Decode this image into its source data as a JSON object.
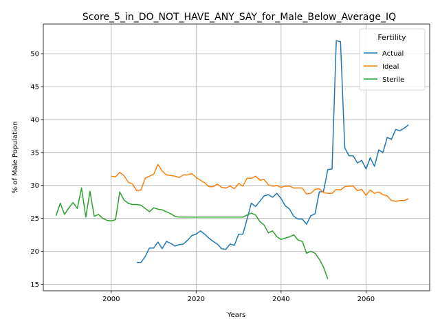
{
  "chart_data": {
    "type": "line",
    "title": "Score_5_in_DO_NOT_HAVE_ANY_SAY_for_Male_Below_Average_IQ",
    "xlabel": "Years",
    "ylabel": "% of Male Population",
    "xlim": [
      1984,
      2075
    ],
    "ylim": [
      14,
      54.5
    ],
    "xticks": [
      2000,
      2020,
      2040,
      2060
    ],
    "yticks": [
      15,
      20,
      25,
      30,
      35,
      40,
      45,
      50
    ],
    "grid": true,
    "legend": {
      "title": "Fertility",
      "placement": "top-right"
    },
    "series": [
      {
        "name": "Actual",
        "color": "#1f77b4",
        "x": [
          2006,
          2007,
          2008,
          2009,
          2010,
          2011,
          2012,
          2013,
          2014,
          2015,
          2016,
          2017,
          2018,
          2019,
          2020,
          2021,
          2022,
          2023,
          2024,
          2025,
          2026,
          2027,
          2028,
          2029,
          2030,
          2031,
          2032,
          2033,
          2034,
          2035,
          2036,
          2037,
          2038,
          2039,
          2040,
          2041,
          2042,
          2043,
          2044,
          2045,
          2046,
          2047,
          2048,
          2049,
          2050,
          2051,
          2052,
          2053,
          2054,
          2055,
          2056,
          2057,
          2058,
          2059,
          2060,
          2061,
          2062,
          2063,
          2064,
          2065,
          2066,
          2067,
          2068,
          2069,
          2070
        ],
        "y": [
          18.3,
          18.3,
          19.2,
          20.5,
          20.5,
          21.4,
          20.4,
          21.5,
          21.2,
          20.8,
          21.0,
          21.1,
          21.7,
          22.4,
          22.6,
          23.1,
          22.6,
          22.0,
          21.5,
          21.1,
          20.4,
          20.3,
          21.1,
          20.9,
          22.6,
          22.6,
          24.9,
          27.3,
          26.8,
          27.6,
          28.4,
          28.6,
          28.2,
          28.8,
          28.0,
          26.9,
          26.4,
          25.3,
          24.9,
          24.9,
          24.1,
          25.4,
          25.7,
          29.0,
          29.1,
          32.4,
          32.5,
          52.0,
          51.8,
          35.7,
          34.5,
          34.5,
          33.4,
          33.8,
          32.5,
          34.2,
          32.9,
          35.4,
          35.0,
          37.3,
          37.0,
          38.5,
          38.3,
          38.7,
          39.2
        ]
      },
      {
        "name": "Ideal",
        "color": "#ff7f0e",
        "x": [
          2000,
          2001,
          2002,
          2003,
          2004,
          2005,
          2006,
          2007,
          2008,
          2009,
          2010,
          2011,
          2012,
          2013,
          2014,
          2015,
          2016,
          2017,
          2018,
          2019,
          2020,
          2021,
          2022,
          2023,
          2024,
          2025,
          2026,
          2027,
          2028,
          2029,
          2030,
          2031,
          2032,
          2033,
          2034,
          2035,
          2036,
          2037,
          2038,
          2039,
          2040,
          2041,
          2042,
          2043,
          2044,
          2045,
          2046,
          2047,
          2048,
          2049,
          2050,
          2051,
          2052,
          2053,
          2054,
          2055,
          2056,
          2057,
          2058,
          2059,
          2060,
          2061,
          2062,
          2063,
          2064,
          2065,
          2066,
          2067,
          2068,
          2069,
          2070
        ],
        "y": [
          31.4,
          31.3,
          32.0,
          31.5,
          30.5,
          30.2,
          29.2,
          29.3,
          31.1,
          31.4,
          31.7,
          33.2,
          32.2,
          31.6,
          31.5,
          31.4,
          31.2,
          31.6,
          31.6,
          31.8,
          31.2,
          30.8,
          30.4,
          29.8,
          29.8,
          30.2,
          29.7,
          29.6,
          29.9,
          29.5,
          30.3,
          29.9,
          31.1,
          31.1,
          31.4,
          30.8,
          30.9,
          30.1,
          29.9,
          30.0,
          29.7,
          29.9,
          29.9,
          29.6,
          29.6,
          29.6,
          28.7,
          28.8,
          29.4,
          29.5,
          28.9,
          28.8,
          28.8,
          29.4,
          29.3,
          29.8,
          29.9,
          29.9,
          29.2,
          29.4,
          28.5,
          29.3,
          28.8,
          29.0,
          28.6,
          28.4,
          27.7,
          27.6,
          27.7,
          27.7,
          28.0
        ]
      },
      {
        "name": "Sterile",
        "color": "#2ca02c",
        "x": [
          1987,
          1988,
          1989,
          1990,
          1991,
          1992,
          1993,
          1994,
          1995,
          1996,
          1997,
          1998,
          1999,
          2000,
          2001,
          2002,
          2003,
          2004,
          2005,
          2006,
          2007,
          2008,
          2009,
          2010,
          2011,
          2012,
          2013,
          2014,
          2015,
          2016,
          2017,
          2018,
          2019,
          2020,
          2021,
          2022,
          2023,
          2024,
          2025,
          2026,
          2027,
          2028,
          2029,
          2030,
          2031,
          2032,
          2033,
          2034,
          2035,
          2036,
          2037,
          2038,
          2039,
          2040,
          2041,
          2042,
          2043,
          2044,
          2045,
          2046,
          2047,
          2048,
          2049,
          2050,
          2051
        ],
        "y": [
          25.4,
          27.3,
          25.6,
          26.6,
          27.4,
          26.5,
          29.6,
          25.2,
          29.1,
          25.3,
          25.6,
          25.0,
          24.7,
          24.6,
          24.8,
          29.0,
          27.8,
          27.3,
          27.1,
          27.1,
          27.0,
          26.5,
          26.0,
          26.6,
          26.4,
          26.3,
          26.0,
          25.7,
          25.3,
          25.2,
          25.2,
          25.2,
          25.2,
          25.2,
          25.2,
          25.2,
          25.2,
          25.2,
          25.2,
          25.2,
          25.2,
          25.2,
          25.2,
          25.2,
          25.2,
          25.5,
          25.8,
          25.5,
          24.5,
          24.0,
          22.8,
          23.1,
          22.2,
          21.8,
          22.0,
          22.2,
          22.5,
          21.7,
          21.5,
          19.7,
          20.0,
          19.7,
          18.8,
          17.6,
          15.8
        ]
      }
    ]
  }
}
